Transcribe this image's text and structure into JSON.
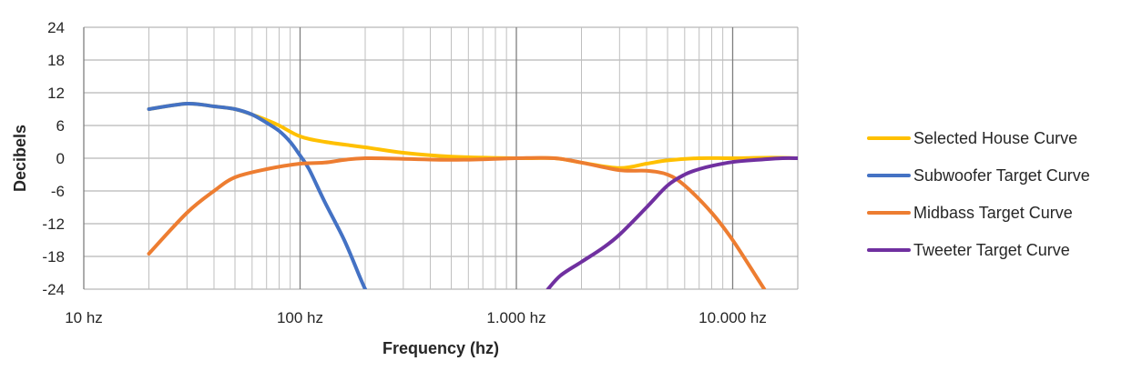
{
  "chart_data": {
    "type": "line",
    "xlabel": "Frequency (hz)",
    "ylabel": "Decibels",
    "x_scale": "log",
    "xlim": [
      10,
      20000
    ],
    "ylim": [
      -24,
      24
    ],
    "x_ticks": [
      {
        "value": 10,
        "label": "10 hz"
      },
      {
        "value": 100,
        "label": "100 hz"
      },
      {
        "value": 1000,
        "label": "1.000 hz"
      },
      {
        "value": 10000,
        "label": "10.000 hz"
      }
    ],
    "y_ticks": [
      {
        "value": 24,
        "label": "24"
      },
      {
        "value": 18,
        "label": "18"
      },
      {
        "value": 12,
        "label": "12"
      },
      {
        "value": 6,
        "label": "6"
      },
      {
        "value": 0,
        "label": "0"
      },
      {
        "value": -6,
        "label": "-6"
      },
      {
        "value": -12,
        "label": "-12"
      },
      {
        "value": -18,
        "label": "-18"
      },
      {
        "value": -24,
        "label": "-24"
      }
    ],
    "grid": true,
    "legend_position": "right",
    "series": [
      {
        "name": "Selected House Curve",
        "color": "#FFC000",
        "points": [
          [
            20,
            9
          ],
          [
            30,
            10
          ],
          [
            40,
            9.5
          ],
          [
            50,
            9
          ],
          [
            60,
            8
          ],
          [
            70,
            7
          ],
          [
            80,
            6
          ],
          [
            100,
            4
          ],
          [
            130,
            3
          ],
          [
            200,
            2
          ],
          [
            300,
            1
          ],
          [
            500,
            0.3
          ],
          [
            1000,
            0
          ],
          [
            1500,
            0
          ],
          [
            2000,
            -0.8
          ],
          [
            3000,
            -1.8
          ],
          [
            4000,
            -1
          ],
          [
            5000,
            -0.4
          ],
          [
            7000,
            0
          ],
          [
            10000,
            0
          ],
          [
            15000,
            0.1
          ],
          [
            20000,
            0
          ]
        ]
      },
      {
        "name": "Subwoofer Target Curve",
        "color": "#4472C4",
        "points": [
          [
            20,
            9
          ],
          [
            30,
            10
          ],
          [
            40,
            9.5
          ],
          [
            50,
            9
          ],
          [
            60,
            8
          ],
          [
            70,
            6.5
          ],
          [
            80,
            5
          ],
          [
            90,
            3
          ],
          [
            100,
            0.5
          ],
          [
            110,
            -2
          ],
          [
            130,
            -8
          ],
          [
            160,
            -15
          ],
          [
            190,
            -22
          ],
          [
            200,
            -24
          ]
        ]
      },
      {
        "name": "Midbass Target Curve",
        "color": "#ED7D31",
        "points": [
          [
            20,
            -17.5
          ],
          [
            30,
            -10
          ],
          [
            40,
            -6
          ],
          [
            50,
            -3.5
          ],
          [
            70,
            -2
          ],
          [
            100,
            -1
          ],
          [
            130,
            -0.8
          ],
          [
            200,
            0
          ],
          [
            500,
            -0.3
          ],
          [
            1000,
            0
          ],
          [
            1500,
            0
          ],
          [
            2000,
            -0.8
          ],
          [
            3000,
            -2.2
          ],
          [
            4000,
            -2.3
          ],
          [
            5000,
            -3
          ],
          [
            6000,
            -5
          ],
          [
            8000,
            -10
          ],
          [
            10000,
            -15
          ],
          [
            13000,
            -22
          ],
          [
            14000,
            -24
          ]
        ]
      },
      {
        "name": "Tweeter Target Curve",
        "color": "#7030A0",
        "points": [
          [
            1400,
            -24
          ],
          [
            1600,
            -21.5
          ],
          [
            2000,
            -19
          ],
          [
            2500,
            -16.5
          ],
          [
            3000,
            -14
          ],
          [
            4000,
            -9
          ],
          [
            5000,
            -5
          ],
          [
            6000,
            -3
          ],
          [
            7000,
            -2
          ],
          [
            8000,
            -1.4
          ],
          [
            10000,
            -0.7
          ],
          [
            13000,
            -0.3
          ],
          [
            17000,
            0
          ],
          [
            20000,
            0
          ]
        ]
      }
    ]
  }
}
